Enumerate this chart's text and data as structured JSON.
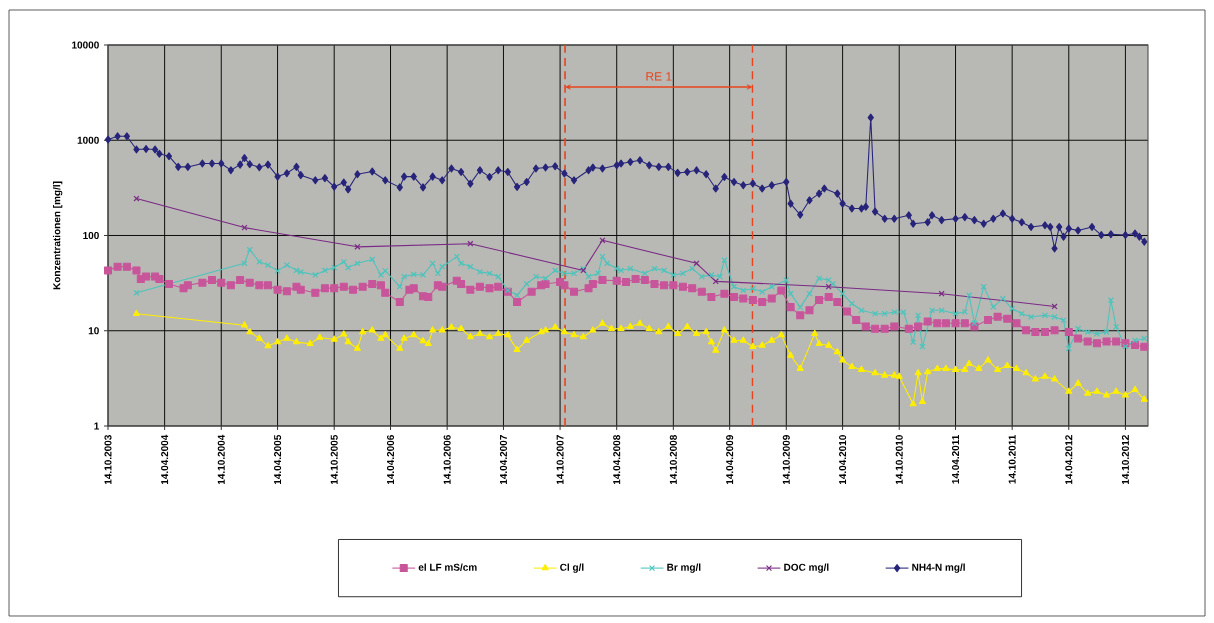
{
  "chart_data": {
    "type": "line",
    "ylabel": "Konzentrationen [mg/l]",
    "log": "y",
    "grid": true,
    "legend": "bottom",
    "xlim": [
      "2003-10-14",
      "2012-12-26"
    ],
    "xticks": [
      {
        "value": "2003-10-14",
        "label": "14.10.2003"
      },
      {
        "value": "2004-04-14",
        "label": "14.04.2004"
      },
      {
        "value": "2004-10-14",
        "label": "14.10.2004"
      },
      {
        "value": "2005-04-14",
        "label": "14.04.2005"
      },
      {
        "value": "2005-10-14",
        "label": "14.10.2005"
      },
      {
        "value": "2006-04-14",
        "label": "14.04.2006"
      },
      {
        "value": "2006-10-14",
        "label": "14.10.2006"
      },
      {
        "value": "2007-04-14",
        "label": "14.04.2007"
      },
      {
        "value": "2007-10-14",
        "label": "14.10.2007"
      },
      {
        "value": "2008-04-14",
        "label": "14.04.2008"
      },
      {
        "value": "2008-10-14",
        "label": "14.10.2008"
      },
      {
        "value": "2009-04-14",
        "label": "14.04.2009"
      },
      {
        "value": "2009-10-14",
        "label": "14.10.2009"
      },
      {
        "value": "2010-04-14",
        "label": "14.04.2010"
      },
      {
        "value": "2010-10-14",
        "label": "14.10.2010"
      },
      {
        "value": "2011-04-14",
        "label": "14.04.2011"
      },
      {
        "value": "2011-10-14",
        "label": "14.10.2011"
      },
      {
        "value": "2012-04-14",
        "label": "14.04.2012"
      },
      {
        "value": "2012-10-14",
        "label": "14.10.2012"
      }
    ],
    "ylim": [
      1,
      10000
    ],
    "yticks": [
      1,
      10,
      100,
      1000,
      10000
    ],
    "ref_lines": [
      {
        "axis": "x",
        "value": "2007-10-30",
        "color": "#e8441c",
        "line_style": "dashed"
      },
      {
        "axis": "x",
        "value": "2009-06-27",
        "color": "#e8441c",
        "line_style": "dashed"
      }
    ],
    "annotations": [
      "RE 1"
    ],
    "series": [
      {
        "name": "el LF mS/cm",
        "color": "#c8559a",
        "marker": "square",
        "x": [
          "2003-10-14",
          "2003-11-14",
          "2003-12-14",
          "2004-01-14",
          "2004-01-28",
          "2004-02-14",
          "2004-03-14",
          "2004-03-28",
          "2004-04-28",
          "2004-06-14",
          "2004-06-28",
          "2004-08-14",
          "2004-09-14",
          "2004-10-14",
          "2004-11-14",
          "2004-12-14",
          "2005-01-14",
          "2005-02-14",
          "2005-03-14",
          "2005-04-14",
          "2005-05-14",
          "2005-06-14",
          "2005-06-28",
          "2005-08-14",
          "2005-09-14",
          "2005-10-14",
          "2005-11-14",
          "2005-12-14",
          "2006-01-14",
          "2006-02-14",
          "2006-03-14",
          "2006-03-28",
          "2006-05-14",
          "2006-06-14",
          "2006-06-28",
          "2006-07-28",
          "2006-08-14",
          "2006-09-14",
          "2006-09-28",
          "2006-11-14",
          "2006-11-28",
          "2006-12-28",
          "2007-01-28",
          "2007-02-28",
          "2007-03-28",
          "2007-04-28",
          "2007-05-28",
          "2007-07-14",
          "2007-08-14",
          "2007-08-28",
          "2007-10-14",
          "2007-10-28",
          "2007-11-28",
          "2008-01-14",
          "2008-01-28",
          "2008-02-28",
          "2008-04-14",
          "2008-05-14",
          "2008-06-14",
          "2008-07-14",
          "2008-08-14",
          "2008-09-14",
          "2008-10-14",
          "2008-11-14",
          "2008-12-14",
          "2009-01-14",
          "2009-02-14",
          "2009-03-28",
          "2009-04-28",
          "2009-05-28",
          "2009-06-28",
          "2009-07-28",
          "2009-08-28",
          "2009-09-28",
          "2009-10-28",
          "2009-11-28",
          "2009-12-28",
          "2010-01-28",
          "2010-02-28",
          "2010-03-28",
          "2010-04-28",
          "2010-05-28",
          "2010-06-28",
          "2010-07-28",
          "2010-08-28",
          "2010-09-28",
          "2010-11-14",
          "2010-12-14",
          "2011-01-14",
          "2011-02-14",
          "2011-03-14",
          "2011-04-14",
          "2011-05-14",
          "2011-06-14",
          "2011-07-28",
          "2011-08-28",
          "2011-09-28",
          "2011-10-28",
          "2011-11-28",
          "2011-12-28",
          "2012-01-28",
          "2012-02-28",
          "2012-04-14",
          "2012-05-14",
          "2012-06-14",
          "2012-07-14",
          "2012-08-14",
          "2012-09-14",
          "2012-10-14",
          "2012-11-14",
          "2012-12-14"
        ],
        "values": [
          43,
          47,
          47,
          43,
          35,
          37,
          37,
          35,
          31,
          28,
          30,
          32,
          34,
          32,
          30,
          34,
          32,
          30,
          30,
          27,
          26,
          29,
          27,
          25,
          28,
          28,
          29,
          27,
          29,
          31,
          30,
          25,
          20,
          27,
          28,
          23,
          22.6,
          30,
          29,
          33.5,
          31,
          27,
          29,
          28,
          29,
          25.7,
          20,
          25.7,
          30,
          31,
          32.5,
          30,
          25.7,
          28,
          31,
          34,
          33.5,
          32.5,
          35,
          34,
          31,
          30,
          30,
          29,
          28,
          25.7,
          22.6,
          24.5,
          22.6,
          21.8,
          21,
          20,
          21.8,
          26.4,
          17.7,
          14.5,
          16.4,
          21,
          22.6,
          20,
          15.9,
          13,
          11.1,
          10.5,
          10.5,
          11.1,
          10.5,
          11.1,
          12.5,
          12,
          12,
          12,
          12,
          11.1,
          13,
          14,
          13.4,
          12,
          10.1,
          9.7,
          9.7,
          10.1,
          9.7,
          8.3,
          7.7,
          7.4,
          7.7,
          7.7,
          7.4,
          7.1,
          6.8
        ]
      },
      {
        "name": "Cl g/l",
        "color": "#ffee00",
        "marker": "triangle",
        "x": [
          "2004-01-14",
          "2004-12-28",
          "2005-01-14",
          "2005-02-14",
          "2005-03-14",
          "2005-04-14",
          "2005-05-14",
          "2005-06-14",
          "2005-07-28",
          "2005-08-28",
          "2005-10-14",
          "2005-11-14",
          "2005-11-28",
          "2005-12-28",
          "2006-01-14",
          "2006-02-14",
          "2006-03-14",
          "2006-03-28",
          "2006-05-14",
          "2006-05-28",
          "2006-06-28",
          "2006-07-28",
          "2006-08-14",
          "2006-08-28",
          "2006-09-28",
          "2006-10-28",
          "2006-11-28",
          "2006-12-28",
          "2007-01-28",
          "2007-02-28",
          "2007-03-28",
          "2007-04-28",
          "2007-05-28",
          "2007-06-28",
          "2007-08-14",
          "2007-08-28",
          "2007-09-28",
          "2007-10-28",
          "2007-11-28",
          "2007-12-28",
          "2008-01-28",
          "2008-02-28",
          "2008-03-28",
          "2008-04-28",
          "2008-05-28",
          "2008-06-28",
          "2008-07-28",
          "2008-08-28",
          "2008-09-28",
          "2008-10-28",
          "2008-11-28",
          "2008-12-28",
          "2009-01-28",
          "2009-02-14",
          "2009-02-28",
          "2009-03-28",
          "2009-04-28",
          "2009-05-28",
          "2009-06-28",
          "2009-07-28",
          "2009-08-28",
          "2009-09-28",
          "2009-10-28",
          "2009-11-28",
          "2010-01-14",
          "2010-01-28",
          "2010-02-28",
          "2010-03-28",
          "2010-04-14",
          "2010-05-14",
          "2010-06-14",
          "2010-07-28",
          "2010-08-28",
          "2010-09-28",
          "2010-10-14",
          "2010-11-28",
          "2010-12-14",
          "2010-12-28",
          "2011-01-14",
          "2011-02-14",
          "2011-03-14",
          "2011-04-14",
          "2011-05-14",
          "2011-05-28",
          "2011-06-28",
          "2011-07-28",
          "2011-08-28",
          "2011-09-28",
          "2011-10-28",
          "2011-11-28",
          "2011-12-28",
          "2012-01-28",
          "2012-02-28",
          "2012-04-14",
          "2012-05-14",
          "2012-06-14",
          "2012-07-14",
          "2012-08-14",
          "2012-09-14",
          "2012-10-14",
          "2012-11-14",
          "2012-12-14"
        ],
        "values": [
          15.1,
          11.4,
          9.7,
          8.3,
          6.9,
          7.6,
          8.3,
          7.6,
          7.3,
          8.5,
          8.1,
          9.2,
          7.6,
          6.5,
          9.7,
          10.1,
          8.3,
          9,
          6.5,
          8.3,
          9,
          7.8,
          7.3,
          10.1,
          10.1,
          10.9,
          10.5,
          8.6,
          9.3,
          8.6,
          9.3,
          9,
          6.3,
          7.9,
          9.7,
          10.1,
          10.9,
          9.7,
          9,
          8.6,
          10.1,
          11.9,
          10.5,
          10.5,
          11,
          11.9,
          10.5,
          9.7,
          11,
          9.3,
          11,
          9.3,
          9.7,
          7.6,
          6.2,
          10.1,
          7.9,
          7.9,
          6.8,
          7,
          7.9,
          9,
          5.5,
          4,
          9.3,
          7.3,
          7,
          6,
          4.9,
          4.2,
          3.9,
          3.6,
          3.4,
          3.4,
          3.3,
          1.7,
          3.6,
          1.8,
          3.7,
          4,
          4,
          3.9,
          3.9,
          4.5,
          4,
          4.9,
          3.9,
          4.3,
          4,
          3.6,
          3.1,
          3.3,
          3.1,
          2.3,
          2.8,
          2.2,
          2.3,
          2.1,
          2.3,
          2.1,
          2.4,
          1.9
        ]
      },
      {
        "name": "Br mg/l",
        "color": "#4cc4bc",
        "marker": "cross",
        "x": [
          "2004-01-14",
          "2004-12-28",
          "2005-01-14",
          "2005-02-14",
          "2005-03-14",
          "2005-04-14",
          "2005-05-14",
          "2005-06-14",
          "2005-06-28",
          "2005-08-14",
          "2005-09-14",
          "2005-10-14",
          "2005-11-14",
          "2005-11-28",
          "2005-12-28",
          "2006-02-14",
          "2006-03-14",
          "2006-03-28",
          "2006-05-14",
          "2006-05-28",
          "2006-06-28",
          "2006-07-28",
          "2006-08-28",
          "2006-09-14",
          "2006-09-28",
          "2006-11-14",
          "2006-11-28",
          "2006-12-28",
          "2007-01-28",
          "2007-02-28",
          "2007-03-28",
          "2007-04-28",
          "2007-05-28",
          "2007-06-28",
          "2007-07-28",
          "2007-08-28",
          "2007-09-28",
          "2007-10-28",
          "2007-11-28",
          "2007-12-28",
          "2008-01-14",
          "2008-02-14",
          "2008-02-28",
          "2008-03-14",
          "2008-04-14",
          "2008-04-28",
          "2008-05-28",
          "2008-07-14",
          "2008-08-14",
          "2008-09-14",
          "2008-10-14",
          "2008-11-14",
          "2008-12-14",
          "2009-01-14",
          "2009-02-14",
          "2009-03-14",
          "2009-03-28",
          "2009-04-28",
          "2009-05-28",
          "2009-06-28",
          "2009-07-28",
          "2009-08-28",
          "2009-10-14",
          "2009-10-28",
          "2009-11-28",
          "2009-12-28",
          "2010-01-28",
          "2010-02-28",
          "2010-03-14",
          "2010-04-14",
          "2010-05-14",
          "2010-06-14",
          "2010-07-28",
          "2010-08-28",
          "2010-09-28",
          "2010-10-28",
          "2010-11-28",
          "2010-12-14",
          "2010-12-28",
          "2011-01-28",
          "2011-02-28",
          "2011-04-14",
          "2011-05-14",
          "2011-05-28",
          "2011-06-14",
          "2011-07-14",
          "2011-08-14",
          "2011-09-14",
          "2011-10-14",
          "2011-11-14",
          "2011-12-14",
          "2012-01-28",
          "2012-02-28",
          "2012-03-28",
          "2012-04-14",
          "2012-05-14",
          "2012-06-14",
          "2012-07-14",
          "2012-08-14",
          "2012-08-28",
          "2012-09-14",
          "2012-10-14",
          "2012-11-14",
          "2012-12-14"
        ],
        "values": [
          25,
          51,
          71,
          53,
          49,
          42.5,
          49,
          43,
          41.5,
          38.5,
          43,
          46,
          53,
          46,
          51,
          56,
          38.5,
          42.5,
          29,
          37,
          39,
          38.5,
          51,
          40,
          47,
          60,
          51,
          47,
          41.5,
          40,
          37,
          26.6,
          23.6,
          31,
          37,
          35.5,
          43,
          40,
          40,
          45,
          37,
          40,
          60,
          51,
          45,
          43,
          45,
          40,
          45,
          43,
          38.5,
          40,
          45,
          37,
          38.5,
          37,
          55,
          29,
          26.6,
          27.6,
          25.6,
          29,
          34,
          24.5,
          17.7,
          24.5,
          35.5,
          34,
          31,
          24.5,
          19.3,
          16.4,
          15.1,
          15.1,
          15.7,
          15.7,
          7.6,
          14.5,
          6.8,
          16.4,
          16.4,
          15.1,
          15.8,
          23.6,
          12,
          29,
          17.8,
          21.7,
          17.1,
          15.1,
          14,
          14.5,
          14,
          12.9,
          6.5,
          10.5,
          9.7,
          9.3,
          9.7,
          20.9,
          11,
          6.8,
          7.9,
          8.3
        ]
      },
      {
        "name": "DOC mg/l",
        "color": "#7a2a85",
        "marker": "cross",
        "x": [
          "2004-01-14",
          "2004-12-28",
          "2005-12-28",
          "2006-12-28",
          "2007-12-28",
          "2008-02-28",
          "2008-12-28",
          "2009-02-28",
          "2010-02-28",
          "2011-02-28",
          "2012-02-28"
        ],
        "values": [
          244,
          121,
          76,
          82,
          43,
          89,
          51,
          33,
          29,
          24.5,
          18
        ]
      },
      {
        "name": "NH4-N mg/l",
        "color": "#27247a",
        "marker": "diamond",
        "x": [
          "2003-10-14",
          "2003-11-14",
          "2003-12-14",
          "2004-01-14",
          "2004-02-14",
          "2004-03-14",
          "2004-03-28",
          "2004-04-28",
          "2004-05-28",
          "2004-06-28",
          "2004-08-14",
          "2004-09-14",
          "2004-10-14",
          "2004-11-14",
          "2004-12-14",
          "2004-12-28",
          "2005-01-14",
          "2005-02-14",
          "2005-03-14",
          "2005-04-14",
          "2005-05-14",
          "2005-06-14",
          "2005-06-28",
          "2005-08-14",
          "2005-09-14",
          "2005-10-14",
          "2005-11-14",
          "2005-11-28",
          "2005-12-28",
          "2006-02-14",
          "2006-03-28",
          "2006-05-14",
          "2006-05-28",
          "2006-06-28",
          "2006-07-28",
          "2006-08-28",
          "2006-09-28",
          "2006-10-28",
          "2006-11-28",
          "2006-12-28",
          "2007-01-28",
          "2007-02-28",
          "2007-03-28",
          "2007-04-28",
          "2007-05-28",
          "2007-06-28",
          "2007-07-28",
          "2007-08-28",
          "2007-09-28",
          "2007-10-28",
          "2007-11-28",
          "2008-01-14",
          "2008-01-28",
          "2008-02-28",
          "2008-04-14",
          "2008-04-28",
          "2008-05-28",
          "2008-06-28",
          "2008-07-28",
          "2008-08-28",
          "2008-09-28",
          "2008-10-28",
          "2008-11-28",
          "2008-12-28",
          "2009-01-28",
          "2009-02-28",
          "2009-03-28",
          "2009-04-28",
          "2009-05-28",
          "2009-06-28",
          "2009-07-28",
          "2009-08-28",
          "2009-10-14",
          "2009-10-28",
          "2009-11-28",
          "2009-12-28",
          "2010-01-28",
          "2010-02-14",
          "2010-03-28",
          "2010-04-14",
          "2010-05-14",
          "2010-06-14",
          "2010-06-28",
          "2010-07-14",
          "2010-07-28",
          "2010-08-28",
          "2010-09-28",
          "2010-11-14",
          "2010-11-28",
          "2011-01-14",
          "2011-01-28",
          "2011-02-28",
          "2011-04-14",
          "2011-05-14",
          "2011-06-14",
          "2011-07-14",
          "2011-08-14",
          "2011-09-14",
          "2011-10-14",
          "2011-11-14",
          "2011-12-14",
          "2012-01-28",
          "2012-02-14",
          "2012-02-28",
          "2012-03-14",
          "2012-03-28",
          "2012-04-14",
          "2012-05-14",
          "2012-06-28",
          "2012-07-28",
          "2012-08-28",
          "2012-10-14",
          "2012-11-14",
          "2012-11-28",
          "2012-12-14"
        ],
        "values": [
          1016,
          1100,
          1100,
          800,
          810,
          800,
          720,
          680,
          525,
          525,
          570,
          570,
          570,
          485,
          555,
          650,
          560,
          520,
          555,
          415,
          450,
          525,
          430,
          380,
          400,
          325,
          360,
          305,
          440,
          470,
          380,
          320,
          415,
          415,
          320,
          415,
          380,
          505,
          465,
          350,
          484,
          412,
          484,
          465,
          324,
          365,
          505,
          517,
          533,
          447,
          380,
          484,
          517,
          505,
          546,
          569,
          592,
          617,
          546,
          525,
          525,
          454,
          465,
          484,
          440,
          311,
          412,
          365,
          337,
          351,
          311,
          337,
          365,
          216,
          165,
          234,
          275,
          311,
          275,
          216,
          192,
          192,
          200,
          1730,
          178,
          150,
          150,
          163,
          133,
          138,
          163,
          145,
          150,
          156,
          145,
          133,
          150,
          170,
          150,
          138,
          123,
          128,
          123,
          73,
          123,
          97,
          118,
          113,
          123,
          101,
          103,
          101,
          105,
          97,
          86
        ]
      }
    ]
  }
}
